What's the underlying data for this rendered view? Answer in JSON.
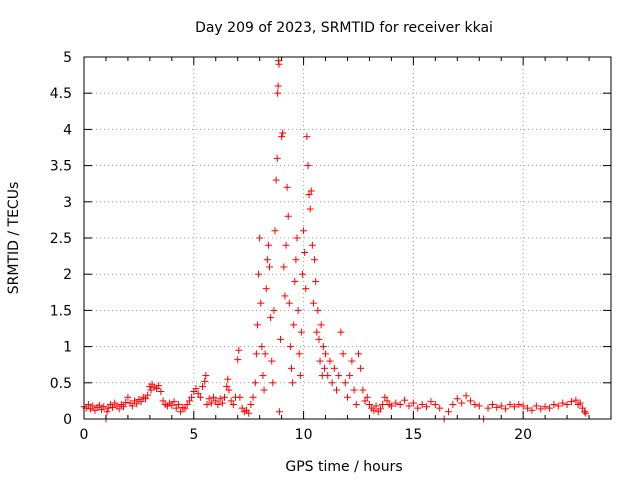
{
  "chart_data": {
    "type": "scatter",
    "title": "Day 209 of 2023, SRMTID for receiver kkai",
    "xlabel": "GPS time / hours",
    "ylabel": "SRMTID / TECUs",
    "xlim": [
      0,
      24
    ],
    "ylim": [
      0,
      5
    ],
    "xticks": [
      "0",
      "5",
      "10",
      "15",
      "20"
    ],
    "yticks": [
      "0",
      "0.5",
      "1",
      "1.5",
      "2",
      "2.5",
      "3",
      "3.5",
      "4",
      "4.5",
      "5"
    ],
    "grid": true,
    "marker": "+",
    "color": "#ff0000",
    "series": [
      {
        "name": "kkai",
        "points": [
          [
            0.0,
            0.17
          ],
          [
            0.1,
            0.15
          ],
          [
            0.2,
            0.2
          ],
          [
            0.3,
            0.14
          ],
          [
            0.4,
            0.18
          ],
          [
            0.5,
            0.12
          ],
          [
            0.6,
            0.16
          ],
          [
            0.7,
            0.19
          ],
          [
            0.8,
            0.13
          ],
          [
            0.9,
            0.17
          ],
          [
            1.0,
            0.0
          ],
          [
            1.05,
            0.1
          ],
          [
            1.1,
            0.15
          ],
          [
            1.2,
            0.2
          ],
          [
            1.3,
            0.16
          ],
          [
            1.4,
            0.22
          ],
          [
            1.5,
            0.18
          ],
          [
            1.6,
            0.14
          ],
          [
            1.7,
            0.2
          ],
          [
            1.8,
            0.17
          ],
          [
            1.9,
            0.23
          ],
          [
            2.0,
            0.3
          ],
          [
            2.1,
            0.22
          ],
          [
            2.2,
            0.18
          ],
          [
            2.3,
            0.25
          ],
          [
            2.4,
            0.21
          ],
          [
            2.5,
            0.27
          ],
          [
            2.6,
            0.24
          ],
          [
            2.7,
            0.3
          ],
          [
            2.8,
            0.28
          ],
          [
            2.9,
            0.33
          ],
          [
            3.0,
            0.45
          ],
          [
            3.05,
            0.4
          ],
          [
            3.1,
            0.48
          ],
          [
            3.2,
            0.44
          ],
          [
            3.3,
            0.42
          ],
          [
            3.4,
            0.46
          ],
          [
            3.5,
            0.38
          ],
          [
            3.6,
            0.25
          ],
          [
            3.7,
            0.2
          ],
          [
            3.8,
            0.18
          ],
          [
            3.9,
            0.22
          ],
          [
            4.0,
            0.19
          ],
          [
            4.1,
            0.24
          ],
          [
            4.2,
            0.15
          ],
          [
            4.3,
            0.2
          ],
          [
            4.4,
            0.1
          ],
          [
            4.5,
            0.16
          ],
          [
            4.6,
            0.14
          ],
          [
            4.7,
            0.2
          ],
          [
            4.8,
            0.25
          ],
          [
            4.9,
            0.3
          ],
          [
            5.0,
            0.38
          ],
          [
            5.1,
            0.42
          ],
          [
            5.2,
            0.35
          ],
          [
            5.3,
            0.3
          ],
          [
            5.4,
            0.45
          ],
          [
            5.5,
            0.52
          ],
          [
            5.55,
            0.6
          ],
          [
            5.6,
            0.2
          ],
          [
            5.7,
            0.28
          ],
          [
            5.8,
            0.22
          ],
          [
            5.9,
            0.3
          ],
          [
            6.0,
            0.25
          ],
          [
            6.1,
            0.2
          ],
          [
            6.2,
            0.28
          ],
          [
            6.3,
            0.22
          ],
          [
            6.4,
            0.3
          ],
          [
            6.5,
            0.45
          ],
          [
            6.55,
            0.55
          ],
          [
            6.6,
            0.4
          ],
          [
            6.7,
            0.25
          ],
          [
            6.8,
            0.2
          ],
          [
            6.9,
            0.3
          ],
          [
            7.0,
            0.82
          ],
          [
            7.05,
            0.95
          ],
          [
            7.1,
            0.3
          ],
          [
            7.2,
            0.15
          ],
          [
            7.3,
            0.1
          ],
          [
            7.4,
            0.12
          ],
          [
            7.5,
            0.08
          ],
          [
            7.6,
            0.2
          ],
          [
            7.7,
            0.3
          ],
          [
            7.8,
            0.5
          ],
          [
            7.85,
            0.9
          ],
          [
            7.9,
            1.3
          ],
          [
            7.95,
            2.0
          ],
          [
            8.0,
            2.5
          ],
          [
            8.05,
            1.6
          ],
          [
            8.1,
            1.0
          ],
          [
            8.15,
            0.6
          ],
          [
            8.2,
            0.4
          ],
          [
            8.25,
            0.9
          ],
          [
            8.3,
            1.8
          ],
          [
            8.35,
            2.2
          ],
          [
            8.4,
            2.4
          ],
          [
            8.45,
            2.1
          ],
          [
            8.5,
            1.4
          ],
          [
            8.55,
            0.8
          ],
          [
            8.6,
            0.5
          ],
          [
            8.65,
            1.5
          ],
          [
            8.7,
            2.6
          ],
          [
            8.75,
            3.3
          ],
          [
            8.8,
            3.6
          ],
          [
            8.82,
            4.5
          ],
          [
            8.84,
            4.6
          ],
          [
            8.86,
            4.95
          ],
          [
            8.88,
            4.9
          ],
          [
            8.9,
            0.1
          ],
          [
            8.95,
            1.1
          ],
          [
            9.0,
            3.9
          ],
          [
            9.05,
            3.95
          ],
          [
            9.1,
            2.1
          ],
          [
            9.15,
            1.7
          ],
          [
            9.2,
            2.4
          ],
          [
            9.25,
            3.2
          ],
          [
            9.3,
            2.8
          ],
          [
            9.35,
            1.6
          ],
          [
            9.4,
            1.0
          ],
          [
            9.45,
            0.7
          ],
          [
            9.5,
            0.5
          ],
          [
            9.55,
            1.3
          ],
          [
            9.6,
            1.9
          ],
          [
            9.65,
            2.2
          ],
          [
            9.7,
            2.5
          ],
          [
            9.75,
            1.5
          ],
          [
            9.8,
            0.9
          ],
          [
            9.85,
            0.6
          ],
          [
            9.9,
            1.2
          ],
          [
            9.95,
            2.0
          ],
          [
            10.0,
            2.6
          ],
          [
            10.05,
            2.3
          ],
          [
            10.1,
            1.8
          ],
          [
            10.15,
            3.9
          ],
          [
            10.2,
            3.5
          ],
          [
            10.25,
            3.1
          ],
          [
            10.3,
            2.9
          ],
          [
            10.35,
            3.15
          ],
          [
            10.4,
            2.4
          ],
          [
            10.45,
            1.6
          ],
          [
            10.5,
            2.2
          ],
          [
            10.55,
            1.9
          ],
          [
            10.6,
            1.2
          ],
          [
            10.65,
            1.5
          ],
          [
            10.7,
            1.1
          ],
          [
            10.75,
            0.8
          ],
          [
            10.8,
            1.3
          ],
          [
            10.85,
            0.6
          ],
          [
            10.9,
            1.0
          ],
          [
            10.95,
            0.7
          ],
          [
            11.0,
            0.9
          ],
          [
            11.1,
            0.6
          ],
          [
            11.2,
            0.8
          ],
          [
            11.3,
            0.5
          ],
          [
            11.4,
            0.7
          ],
          [
            11.5,
            0.4
          ],
          [
            11.6,
            0.6
          ],
          [
            11.7,
            1.2
          ],
          [
            11.8,
            0.9
          ],
          [
            11.9,
            0.5
          ],
          [
            12.0,
            0.3
          ],
          [
            12.1,
            0.6
          ],
          [
            12.2,
            0.8
          ],
          [
            12.3,
            0.4
          ],
          [
            12.4,
            0.2
          ],
          [
            12.5,
            0.9
          ],
          [
            12.6,
            0.7
          ],
          [
            12.7,
            0.4
          ],
          [
            12.8,
            0.25
          ],
          [
            12.9,
            0.3
          ],
          [
            13.0,
            0.2
          ],
          [
            13.1,
            0.15
          ],
          [
            13.2,
            0.12
          ],
          [
            13.3,
            0.18
          ],
          [
            13.4,
            0.1
          ],
          [
            13.5,
            0.14
          ],
          [
            13.6,
            0.2
          ],
          [
            13.7,
            0.3
          ],
          [
            13.8,
            0.25
          ],
          [
            13.9,
            0.2
          ],
          [
            14.0,
            0.18
          ],
          [
            14.2,
            0.22
          ],
          [
            14.4,
            0.2
          ],
          [
            14.6,
            0.26
          ],
          [
            14.8,
            0.18
          ],
          [
            15.0,
            0.22
          ],
          [
            15.2,
            0.15
          ],
          [
            15.4,
            0.2
          ],
          [
            15.6,
            0.17
          ],
          [
            15.8,
            0.24
          ],
          [
            16.0,
            0.2
          ],
          [
            16.2,
            0.15
          ],
          [
            16.4,
            0.0
          ],
          [
            16.6,
            0.1
          ],
          [
            16.8,
            0.2
          ],
          [
            17.0,
            0.28
          ],
          [
            17.2,
            0.22
          ],
          [
            17.4,
            0.32
          ],
          [
            17.6,
            0.25
          ],
          [
            17.8,
            0.2
          ],
          [
            18.0,
            0.18
          ],
          [
            18.2,
            0.0
          ],
          [
            18.4,
            0.15
          ],
          [
            18.6,
            0.2
          ],
          [
            18.8,
            0.16
          ],
          [
            19.0,
            0.18
          ],
          [
            19.2,
            0.14
          ],
          [
            19.4,
            0.2
          ],
          [
            19.6,
            0.17
          ],
          [
            19.8,
            0.2
          ],
          [
            20.0,
            0.18
          ],
          [
            20.2,
            0.15
          ],
          [
            20.4,
            0.12
          ],
          [
            20.6,
            0.18
          ],
          [
            20.8,
            0.14
          ],
          [
            21.0,
            0.17
          ],
          [
            21.2,
            0.15
          ],
          [
            21.4,
            0.2
          ],
          [
            21.6,
            0.18
          ],
          [
            21.8,
            0.22
          ],
          [
            22.0,
            0.2
          ],
          [
            22.2,
            0.24
          ],
          [
            22.4,
            0.26
          ],
          [
            22.5,
            0.2
          ],
          [
            22.6,
            0.22
          ],
          [
            22.7,
            0.15
          ],
          [
            22.8,
            0.1
          ],
          [
            22.85,
            0.08
          ]
        ]
      }
    ]
  }
}
